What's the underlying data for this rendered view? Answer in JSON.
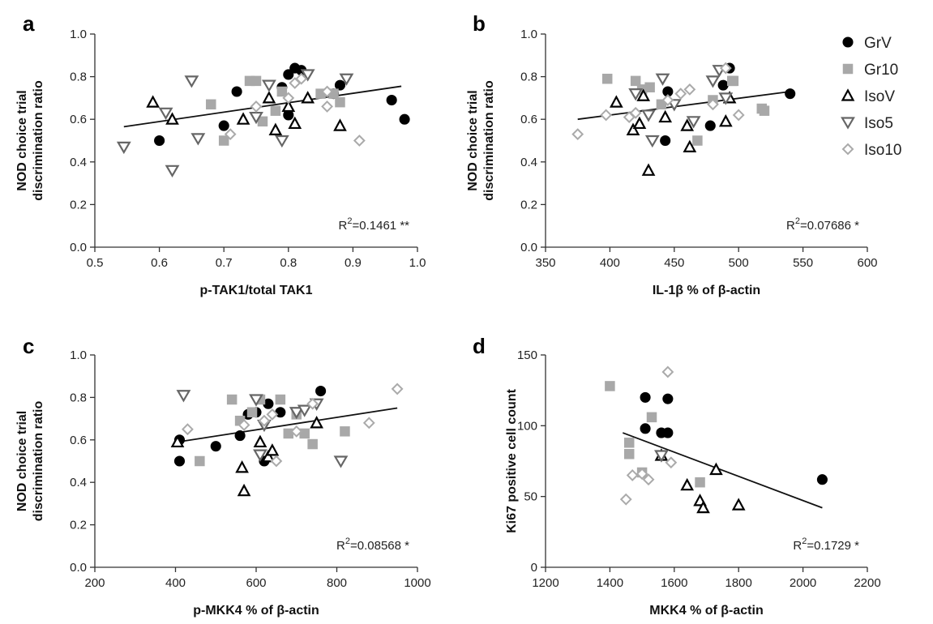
{
  "series_styles": {
    "GrV": {
      "marker": "circle",
      "color": "#000000",
      "fill": true
    },
    "Gr10": {
      "marker": "square",
      "color": "#a8a8a8",
      "fill": true
    },
    "IsoV": {
      "marker": "triangle",
      "color": "#000000",
      "fill": false
    },
    "Iso5": {
      "marker": "invtriangle",
      "color": "#666666",
      "fill": false
    },
    "Iso10": {
      "marker": "diamond",
      "color": "#aaaaaa",
      "fill": false
    }
  },
  "legend": [
    "GrV",
    "Gr10",
    "IsoV",
    "Iso5",
    "Iso10"
  ],
  "chart_data": [
    {
      "panel": "a",
      "type": "scatter",
      "xlabel": "p-TAK1/total TAK1",
      "ylabel": [
        "NOD choice trial",
        "discrimination ratio"
      ],
      "xlim": [
        0.5,
        1.0
      ],
      "ylim": [
        0.0,
        1.0
      ],
      "xticks": [
        "0.5",
        "0.6",
        "0.7",
        "0.8",
        "0.9",
        "1.0"
      ],
      "yticks": [
        "0.0",
        "0.2",
        "0.4",
        "0.6",
        "0.8",
        "1.0"
      ],
      "r2_prefix": "R",
      "r2_sup": "2",
      "r2_text": "=0.1461 **",
      "fit": {
        "x": [
          0.545,
          0.975
        ],
        "y": [
          0.565,
          0.755
        ]
      },
      "series": [
        {
          "name": "GrV",
          "points": [
            [
              0.6,
              0.5
            ],
            [
              0.7,
              0.57
            ],
            [
              0.72,
              0.73
            ],
            [
              0.79,
              0.75
            ],
            [
              0.8,
              0.81
            ],
            [
              0.8,
              0.62
            ],
            [
              0.81,
              0.84
            ],
            [
              0.82,
              0.83
            ],
            [
              0.87,
              0.72
            ],
            [
              0.88,
              0.76
            ],
            [
              0.96,
              0.69
            ],
            [
              0.98,
              0.6
            ]
          ]
        },
        {
          "name": "Gr10",
          "points": [
            [
              0.68,
              0.67
            ],
            [
              0.7,
              0.5
            ],
            [
              0.74,
              0.78
            ],
            [
              0.75,
              0.78
            ],
            [
              0.76,
              0.59
            ],
            [
              0.78,
              0.64
            ],
            [
              0.79,
              0.73
            ],
            [
              0.85,
              0.72
            ],
            [
              0.87,
              0.72
            ],
            [
              0.88,
              0.68
            ]
          ]
        },
        {
          "name": "IsoV",
          "points": [
            [
              0.59,
              0.68
            ],
            [
              0.62,
              0.6
            ],
            [
              0.73,
              0.6
            ],
            [
              0.77,
              0.7
            ],
            [
              0.78,
              0.55
            ],
            [
              0.8,
              0.66
            ],
            [
              0.81,
              0.58
            ],
            [
              0.83,
              0.7
            ],
            [
              0.88,
              0.57
            ]
          ]
        },
        {
          "name": "Iso5",
          "points": [
            [
              0.545,
              0.47
            ],
            [
              0.61,
              0.63
            ],
            [
              0.62,
              0.36
            ],
            [
              0.65,
              0.78
            ],
            [
              0.66,
              0.51
            ],
            [
              0.75,
              0.61
            ],
            [
              0.77,
              0.76
            ],
            [
              0.79,
              0.5
            ],
            [
              0.83,
              0.81
            ],
            [
              0.89,
              0.79
            ]
          ]
        },
        {
          "name": "Iso10",
          "points": [
            [
              0.71,
              0.53
            ],
            [
              0.75,
              0.66
            ],
            [
              0.8,
              0.7
            ],
            [
              0.81,
              0.77
            ],
            [
              0.82,
              0.79
            ],
            [
              0.86,
              0.66
            ],
            [
              0.86,
              0.73
            ],
            [
              0.91,
              0.5
            ]
          ]
        }
      ]
    },
    {
      "panel": "b",
      "type": "scatter",
      "xlabel": "IL-1β % of β-actin",
      "ylabel": [
        "NOD choice trial",
        "discrimination ratio"
      ],
      "xlim": [
        350,
        600
      ],
      "ylim": [
        0.0,
        1.0
      ],
      "xticks": [
        "350",
        "400",
        "450",
        "500",
        "550",
        "600"
      ],
      "yticks": [
        "0.0",
        "0.2",
        "0.4",
        "0.6",
        "0.8",
        "1.0"
      ],
      "r2_prefix": "R",
      "r2_sup": "2",
      "r2_text": "=0.07686 *",
      "fit": {
        "x": [
          375,
          540
        ],
        "y": [
          0.6,
          0.73
        ]
      },
      "series": [
        {
          "name": "GrV",
          "points": [
            [
              443,
              0.5
            ],
            [
              445,
              0.73
            ],
            [
              478,
              0.57
            ],
            [
              488,
              0.76
            ],
            [
              493,
              0.84
            ],
            [
              540,
              0.72
            ]
          ]
        },
        {
          "name": "Gr10",
          "points": [
            [
              398,
              0.79
            ],
            [
              420,
              0.78
            ],
            [
              425,
              0.74
            ],
            [
              431,
              0.75
            ],
            [
              440,
              0.67
            ],
            [
              468,
              0.5
            ],
            [
              480,
              0.69
            ],
            [
              495,
              0.78
            ],
            [
              496,
              0.78
            ],
            [
              518,
              0.65
            ],
            [
              520,
              0.64
            ]
          ]
        },
        {
          "name": "IsoV",
          "points": [
            [
              405,
              0.68
            ],
            [
              418,
              0.55
            ],
            [
              423,
              0.58
            ],
            [
              426,
              0.71
            ],
            [
              430,
              0.36
            ],
            [
              443,
              0.61
            ],
            [
              460,
              0.57
            ],
            [
              462,
              0.47
            ],
            [
              490,
              0.59
            ],
            [
              493,
              0.7
            ]
          ]
        },
        {
          "name": "Iso5",
          "points": [
            [
              420,
              0.72
            ],
            [
              430,
              0.62
            ],
            [
              433,
              0.5
            ],
            [
              441,
              0.79
            ],
            [
              450,
              0.67
            ],
            [
              465,
              0.59
            ],
            [
              480,
              0.78
            ],
            [
              485,
              0.83
            ],
            [
              490,
              0.7
            ]
          ]
        },
        {
          "name": "Iso10",
          "points": [
            [
              375,
              0.53
            ],
            [
              397,
              0.62
            ],
            [
              415,
              0.61
            ],
            [
              420,
              0.63
            ],
            [
              445,
              0.69
            ],
            [
              455,
              0.72
            ],
            [
              462,
              0.74
            ],
            [
              480,
              0.67
            ],
            [
              490,
              0.84
            ],
            [
              500,
              0.62
            ]
          ]
        }
      ]
    },
    {
      "panel": "c",
      "type": "scatter",
      "xlabel": "p-MKK4 % of β-actin",
      "ylabel": [
        "NOD choice trial",
        "discrimination ratio"
      ],
      "xlim": [
        200,
        1000
      ],
      "ylim": [
        0.0,
        1.0
      ],
      "xticks": [
        "200",
        "400",
        "600",
        "800",
        "1000"
      ],
      "yticks": [
        "0.0",
        "0.2",
        "0.4",
        "0.6",
        "0.8",
        "1.0"
      ],
      "r2_prefix": "R",
      "r2_sup": "2",
      "r2_text": "=0.08568 *",
      "fit": {
        "x": [
          405,
          950
        ],
        "y": [
          0.59,
          0.75
        ]
      },
      "series": [
        {
          "name": "GrV",
          "points": [
            [
              410,
              0.5
            ],
            [
              410,
              0.6
            ],
            [
              500,
              0.57
            ],
            [
              560,
              0.62
            ],
            [
              580,
              0.72
            ],
            [
              600,
              0.73
            ],
            [
              620,
              0.5
            ],
            [
              630,
              0.77
            ],
            [
              660,
              0.73
            ],
            [
              760,
              0.83
            ]
          ]
        },
        {
          "name": "Gr10",
          "points": [
            [
              460,
              0.5
            ],
            [
              540,
              0.79
            ],
            [
              560,
              0.69
            ],
            [
              590,
              0.73
            ],
            [
              610,
              0.79
            ],
            [
              660,
              0.79
            ],
            [
              680,
              0.63
            ],
            [
              700,
              0.72
            ],
            [
              720,
              0.63
            ],
            [
              740,
              0.58
            ],
            [
              820,
              0.64
            ]
          ]
        },
        {
          "name": "IsoV",
          "points": [
            [
              405,
              0.59
            ],
            [
              565,
              0.47
            ],
            [
              570,
              0.36
            ],
            [
              610,
              0.59
            ],
            [
              630,
              0.52
            ],
            [
              640,
              0.55
            ],
            [
              750,
              0.68
            ]
          ]
        },
        {
          "name": "Iso5",
          "points": [
            [
              420,
              0.81
            ],
            [
              600,
              0.79
            ],
            [
              610,
              0.53
            ],
            [
              620,
              0.67
            ],
            [
              700,
              0.73
            ],
            [
              720,
              0.74
            ],
            [
              750,
              0.77
            ],
            [
              810,
              0.5
            ]
          ]
        },
        {
          "name": "Iso10",
          "points": [
            [
              430,
              0.65
            ],
            [
              570,
              0.67
            ],
            [
              620,
              0.69
            ],
            [
              640,
              0.72
            ],
            [
              650,
              0.5
            ],
            [
              700,
              0.64
            ],
            [
              740,
              0.77
            ],
            [
              880,
              0.68
            ],
            [
              950,
              0.84
            ]
          ]
        }
      ]
    },
    {
      "panel": "d",
      "type": "scatter",
      "xlabel": "MKK4 % of β-actin",
      "ylabel": [
        "Ki67 positive cell count"
      ],
      "xlim": [
        1200,
        2200
      ],
      "ylim": [
        0,
        150
      ],
      "xticks": [
        "1200",
        "1400",
        "1600",
        "1800",
        "2000",
        "2200"
      ],
      "yticks": [
        "0",
        "50",
        "100",
        "150"
      ],
      "r2_prefix": "R",
      "r2_sup": "2",
      "r2_text": "=0.1729 *",
      "fit": {
        "x": [
          1440,
          2060
        ],
        "y": [
          95,
          42
        ]
      },
      "series": [
        {
          "name": "GrV",
          "points": [
            [
              1510,
              120
            ],
            [
              1510,
              98
            ],
            [
              1560,
              95
            ],
            [
              1580,
              119
            ],
            [
              1580,
              95
            ],
            [
              2060,
              62
            ]
          ]
        },
        {
          "name": "Gr10",
          "points": [
            [
              1400,
              128
            ],
            [
              1460,
              88
            ],
            [
              1460,
              80
            ],
            [
              1500,
              67
            ],
            [
              1530,
              106
            ],
            [
              1680,
              60
            ]
          ]
        },
        {
          "name": "IsoV",
          "points": [
            [
              1560,
              79
            ],
            [
              1640,
              58
            ],
            [
              1680,
              47
            ],
            [
              1690,
              42
            ],
            [
              1730,
              69
            ],
            [
              1800,
              44
            ]
          ]
        },
        {
          "name": "Iso5",
          "points": [
            [
              1560,
              79
            ]
          ]
        },
        {
          "name": "Iso10",
          "points": [
            [
              1450,
              48
            ],
            [
              1470,
              65
            ],
            [
              1500,
              66
            ],
            [
              1520,
              62
            ],
            [
              1580,
              138
            ],
            [
              1590,
              74
            ]
          ]
        }
      ]
    }
  ]
}
